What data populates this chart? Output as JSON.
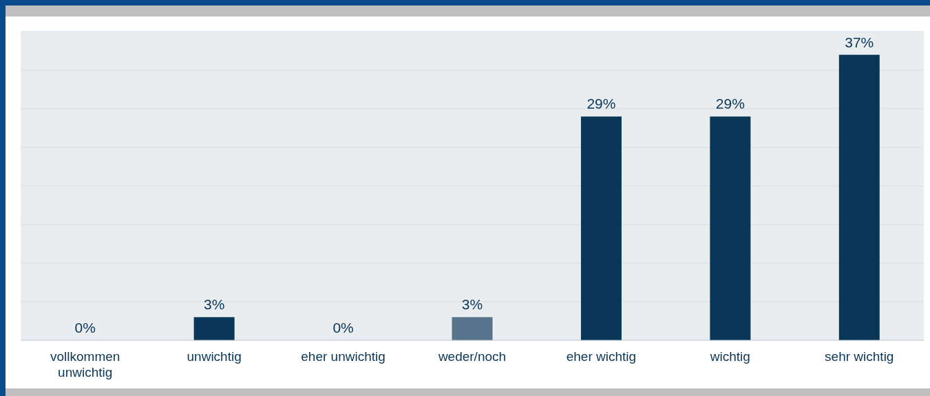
{
  "chart_data": {
    "type": "bar",
    "categories": [
      "vollkommen unwichtig",
      "unwichtig",
      "eher unwichtig",
      "weder/noch",
      "eher wichtig",
      "wichtig",
      "sehr wichtig"
    ],
    "values": [
      0,
      3,
      0,
      3,
      29,
      29,
      37
    ],
    "colors": [
      "#0a3657",
      "#0a3657",
      "#0a3657",
      "#57748c",
      "#0a3657",
      "#0a3657",
      "#0a3657"
    ],
    "value_labels": [
      "0%",
      "3%",
      "0%",
      "3%",
      "29%",
      "29%",
      "37%"
    ],
    "ylim": [
      0,
      40
    ],
    "yticks": [
      {
        "value": 0,
        "label": null
      },
      {
        "value": 5,
        "label": null
      },
      {
        "value": 10,
        "label": null
      },
      {
        "value": 15,
        "label": null
      },
      {
        "value": 20,
        "label": null
      },
      {
        "value": 25,
        "label": null
      },
      {
        "value": 30,
        "label": null
      },
      {
        "value": 35,
        "label": null
      },
      {
        "value": 40,
        "label": null
      }
    ],
    "grid": "y",
    "tick_labels": "x"
  }
}
